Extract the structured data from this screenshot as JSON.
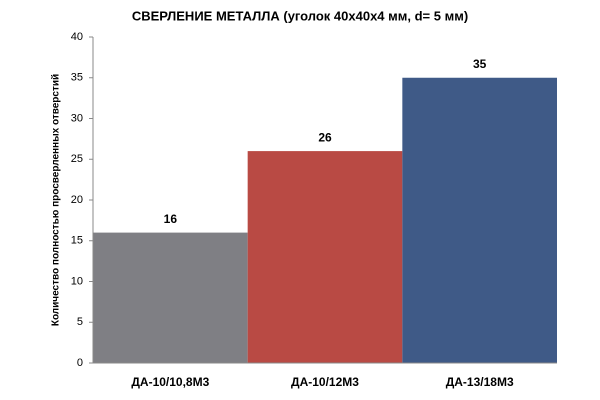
{
  "chart_data": {
    "type": "bar",
    "title": "СВЕРЛЕНИЕ МЕТАЛЛА (уголок 40х40х4 мм, d= 5 мм)",
    "y_label": "Количество полностью просверленных отверстий",
    "categories": [
      "ДА-10/10,8М3",
      "ДА-10/12М3",
      "ДА-13/18М3"
    ],
    "values": [
      16,
      26,
      35
    ],
    "colors": [
      "#7f7f84",
      "#b94a44",
      "#3f5a87"
    ],
    "ylim": [
      0,
      40
    ],
    "yticks": [
      0,
      5,
      10,
      15,
      20,
      25,
      30,
      35,
      40
    ],
    "grid": false
  }
}
